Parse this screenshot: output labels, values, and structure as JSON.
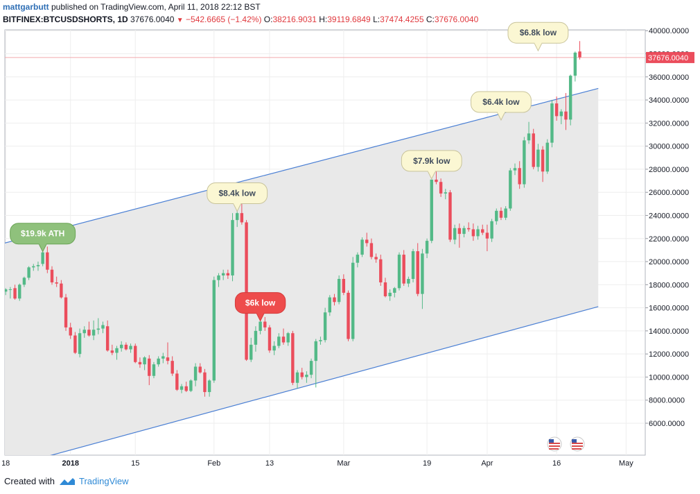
{
  "header": {
    "author": "mattgarbutt",
    "published_text": " published on TradingView.com, April 11, 2018 22:12 BST",
    "symbol": "BITFINEX:BTCUSDSHORTS, 1D",
    "last": "37676.0040",
    "change": "−542.6665 (−1.42%)",
    "ohlc": {
      "o_label": "O:",
      "o": "38216.9031",
      "h_label": "H:",
      "h": "39119.6849",
      "l_label": "L:",
      "l": "37474.4255",
      "c_label": "C:",
      "c": "37676.0040"
    }
  },
  "footer": {
    "created_with": "Created with",
    "brand": "TradingView"
  },
  "colors": {
    "up": "#53b987",
    "down": "#eb4d5c",
    "channel_line": "#4a7fd4",
    "channel_fill": "#e9e9e9",
    "price_line": "#f2a9ae",
    "grid": "#eeeeee"
  },
  "chart_data": {
    "type": "candlestick",
    "ylim": [
      5200,
      41600
    ],
    "y_ticks": [
      "40000.0000",
      "38000.0000",
      "36000.0000",
      "34000.0000",
      "32000.0000",
      "30000.0000",
      "28000.0000",
      "26000.0000",
      "24000.0000",
      "22000.0000",
      "20000.0000",
      "18000.0000",
      "16000.0000",
      "14000.0000",
      "12000.0000",
      "10000.0000",
      "8000.0000",
      "6000.0000"
    ],
    "x_labels": [
      {
        "label": "18",
        "day": 0
      },
      {
        "label": "2018",
        "day": 14
      },
      {
        "label": "15",
        "day": 28
      },
      {
        "label": "Feb",
        "day": 45
      },
      {
        "label": "13",
        "day": 57
      },
      {
        "label": "Mar",
        "day": 73
      },
      {
        "label": "19",
        "day": 91
      },
      {
        "label": "Apr",
        "day": 104
      },
      {
        "label": "16",
        "day": 119
      },
      {
        "label": "May",
        "day": 134
      }
    ],
    "last_price_label": "37676.0040",
    "last_price": 37676,
    "candles": [
      {
        "o": 17400,
        "h": 17700,
        "l": 17100,
        "c": 17600
      },
      {
        "o": 17600,
        "h": 17800,
        "l": 16800,
        "c": 17600
      },
      {
        "o": 17700,
        "h": 18000,
        "l": 16700,
        "c": 16800
      },
      {
        "o": 16800,
        "h": 18100,
        "l": 16600,
        "c": 18000
      },
      {
        "o": 18000,
        "h": 18700,
        "l": 17800,
        "c": 18600
      },
      {
        "o": 18600,
        "h": 19600,
        "l": 18400,
        "c": 19500
      },
      {
        "o": 19500,
        "h": 19800,
        "l": 19200,
        "c": 19600
      },
      {
        "o": 19600,
        "h": 20000,
        "l": 19200,
        "c": 19700
      },
      {
        "o": 19800,
        "h": 21100,
        "l": 19600,
        "c": 20800
      },
      {
        "o": 20800,
        "h": 21300,
        "l": 19000,
        "c": 19300
      },
      {
        "o": 19300,
        "h": 19600,
        "l": 18000,
        "c": 18200
      },
      {
        "o": 18200,
        "h": 18700,
        "l": 17800,
        "c": 18100
      },
      {
        "o": 18100,
        "h": 18400,
        "l": 16800,
        "c": 16900
      },
      {
        "o": 16900,
        "h": 17200,
        "l": 14000,
        "c": 14300
      },
      {
        "o": 14300,
        "h": 14700,
        "l": 13300,
        "c": 13600
      },
      {
        "o": 13600,
        "h": 13900,
        "l": 12000,
        "c": 12100
      },
      {
        "o": 12000,
        "h": 14200,
        "l": 11700,
        "c": 13800
      },
      {
        "o": 13800,
        "h": 14400,
        "l": 13400,
        "c": 14100
      },
      {
        "o": 14100,
        "h": 14800,
        "l": 13500,
        "c": 13600
      },
      {
        "o": 13600,
        "h": 14900,
        "l": 13200,
        "c": 14100
      },
      {
        "o": 14100,
        "h": 15100,
        "l": 13700,
        "c": 14200
      },
      {
        "o": 14200,
        "h": 14800,
        "l": 13800,
        "c": 14500
      },
      {
        "o": 14400,
        "h": 14900,
        "l": 12200,
        "c": 12300
      },
      {
        "o": 12300,
        "h": 12800,
        "l": 11900,
        "c": 12100
      },
      {
        "o": 12100,
        "h": 12700,
        "l": 11500,
        "c": 12500
      },
      {
        "o": 12500,
        "h": 13100,
        "l": 12200,
        "c": 12800
      },
      {
        "o": 12800,
        "h": 13000,
        "l": 12300,
        "c": 12400
      },
      {
        "o": 12400,
        "h": 12900,
        "l": 12100,
        "c": 12700
      },
      {
        "o": 12700,
        "h": 12900,
        "l": 11200,
        "c": 11300
      },
      {
        "o": 11300,
        "h": 11700,
        "l": 10800,
        "c": 11100
      },
      {
        "o": 11100,
        "h": 11800,
        "l": 10600,
        "c": 11700
      },
      {
        "o": 11600,
        "h": 11900,
        "l": 9300,
        "c": 10100
      },
      {
        "o": 10100,
        "h": 11300,
        "l": 9900,
        "c": 11100
      },
      {
        "o": 11100,
        "h": 11800,
        "l": 10900,
        "c": 11600
      },
      {
        "o": 11600,
        "h": 12100,
        "l": 11200,
        "c": 11800
      },
      {
        "o": 11700,
        "h": 13000,
        "l": 11100,
        "c": 11400
      },
      {
        "o": 11400,
        "h": 11800,
        "l": 10100,
        "c": 10300
      },
      {
        "o": 10300,
        "h": 10600,
        "l": 8800,
        "c": 8900
      },
      {
        "o": 8900,
        "h": 9400,
        "l": 8600,
        "c": 9200
      },
      {
        "o": 9200,
        "h": 9600,
        "l": 8700,
        "c": 8800
      },
      {
        "o": 8800,
        "h": 9800,
        "l": 8700,
        "c": 9700
      },
      {
        "o": 9700,
        "h": 11200,
        "l": 9200,
        "c": 10900
      },
      {
        "o": 10900,
        "h": 11200,
        "l": 10300,
        "c": 10400
      },
      {
        "o": 10400,
        "h": 10700,
        "l": 8300,
        "c": 8700
      },
      {
        "o": 8700,
        "h": 9800,
        "l": 8300,
        "c": 9700
      },
      {
        "o": 9700,
        "h": 18700,
        "l": 9500,
        "c": 18400
      },
      {
        "o": 18400,
        "h": 19000,
        "l": 17800,
        "c": 18800
      },
      {
        "o": 18800,
        "h": 19300,
        "l": 18400,
        "c": 19000
      },
      {
        "o": 19000,
        "h": 19300,
        "l": 18500,
        "c": 18800
      },
      {
        "o": 18800,
        "h": 24200,
        "l": 18300,
        "c": 23600
      },
      {
        "o": 23600,
        "h": 24600,
        "l": 23000,
        "c": 24200
      },
      {
        "o": 24200,
        "h": 25800,
        "l": 23200,
        "c": 23400
      },
      {
        "o": 23400,
        "h": 23600,
        "l": 11400,
        "c": 11500
      },
      {
        "o": 11500,
        "h": 13400,
        "l": 11300,
        "c": 12800
      },
      {
        "o": 12800,
        "h": 14400,
        "l": 12200,
        "c": 14000
      },
      {
        "o": 14000,
        "h": 15000,
        "l": 13700,
        "c": 14800
      },
      {
        "o": 14800,
        "h": 15200,
        "l": 14000,
        "c": 14300
      },
      {
        "o": 14300,
        "h": 14500,
        "l": 12100,
        "c": 12300
      },
      {
        "o": 12300,
        "h": 13100,
        "l": 11900,
        "c": 12700
      },
      {
        "o": 12700,
        "h": 13800,
        "l": 12500,
        "c": 13500
      },
      {
        "o": 13500,
        "h": 14200,
        "l": 12800,
        "c": 13000
      },
      {
        "o": 13000,
        "h": 13900,
        "l": 12700,
        "c": 13800
      },
      {
        "o": 13800,
        "h": 14000,
        "l": 9300,
        "c": 9500
      },
      {
        "o": 9500,
        "h": 10600,
        "l": 9000,
        "c": 10400
      },
      {
        "o": 10400,
        "h": 10800,
        "l": 9800,
        "c": 10000
      },
      {
        "o": 10000,
        "h": 10500,
        "l": 9500,
        "c": 10200
      },
      {
        "o": 10200,
        "h": 11600,
        "l": 9900,
        "c": 11400
      },
      {
        "o": 11400,
        "h": 13300,
        "l": 9100,
        "c": 13100
      },
      {
        "o": 13100,
        "h": 13500,
        "l": 12800,
        "c": 13200
      },
      {
        "o": 13200,
        "h": 16000,
        "l": 13000,
        "c": 15600
      },
      {
        "o": 15600,
        "h": 17100,
        "l": 15300,
        "c": 16900
      },
      {
        "o": 16900,
        "h": 17200,
        "l": 16200,
        "c": 16500
      },
      {
        "o": 16500,
        "h": 18800,
        "l": 16300,
        "c": 18500
      },
      {
        "o": 18500,
        "h": 18900,
        "l": 17100,
        "c": 17300
      },
      {
        "o": 17300,
        "h": 17500,
        "l": 13100,
        "c": 13300
      },
      {
        "o": 13300,
        "h": 20400,
        "l": 13100,
        "c": 19900
      },
      {
        "o": 19900,
        "h": 20800,
        "l": 19500,
        "c": 20600
      },
      {
        "o": 20600,
        "h": 22100,
        "l": 20400,
        "c": 21900
      },
      {
        "o": 21900,
        "h": 22500,
        "l": 21300,
        "c": 21600
      },
      {
        "o": 21600,
        "h": 22000,
        "l": 20200,
        "c": 20400
      },
      {
        "o": 20400,
        "h": 20700,
        "l": 19900,
        "c": 20200
      },
      {
        "o": 20200,
        "h": 20600,
        "l": 17900,
        "c": 18200
      },
      {
        "o": 18200,
        "h": 18600,
        "l": 16900,
        "c": 17000
      },
      {
        "o": 17000,
        "h": 17600,
        "l": 16600,
        "c": 17300
      },
      {
        "o": 17300,
        "h": 17800,
        "l": 16900,
        "c": 17700
      },
      {
        "o": 17700,
        "h": 20800,
        "l": 17500,
        "c": 20600
      },
      {
        "o": 20600,
        "h": 21000,
        "l": 17900,
        "c": 18100
      },
      {
        "o": 18100,
        "h": 18700,
        "l": 17800,
        "c": 18500
      },
      {
        "o": 18500,
        "h": 21100,
        "l": 18200,
        "c": 20900
      },
      {
        "o": 20900,
        "h": 21600,
        "l": 17000,
        "c": 17200
      },
      {
        "o": 17200,
        "h": 21100,
        "l": 15900,
        "c": 20700
      },
      {
        "o": 20700,
        "h": 22000,
        "l": 20300,
        "c": 21800
      },
      {
        "o": 21800,
        "h": 27100,
        "l": 21600,
        "c": 27100
      },
      {
        "o": 27100,
        "h": 28700,
        "l": 26700,
        "c": 26900
      },
      {
        "o": 26900,
        "h": 27200,
        "l": 25600,
        "c": 25900
      },
      {
        "o": 25900,
        "h": 26300,
        "l": 25400,
        "c": 26000
      },
      {
        "o": 26000,
        "h": 26200,
        "l": 21700,
        "c": 21900
      },
      {
        "o": 21900,
        "h": 23200,
        "l": 21500,
        "c": 22900
      },
      {
        "o": 22900,
        "h": 23300,
        "l": 21200,
        "c": 22400
      },
      {
        "o": 22400,
        "h": 23100,
        "l": 22100,
        "c": 22900
      },
      {
        "o": 22900,
        "h": 23400,
        "l": 22600,
        "c": 22800
      },
      {
        "o": 22800,
        "h": 23300,
        "l": 21800,
        "c": 22200
      },
      {
        "o": 22200,
        "h": 23100,
        "l": 21900,
        "c": 22800
      },
      {
        "o": 22800,
        "h": 23200,
        "l": 22300,
        "c": 22500
      },
      {
        "o": 22500,
        "h": 23200,
        "l": 20900,
        "c": 22000
      },
      {
        "o": 22000,
        "h": 23700,
        "l": 21700,
        "c": 23500
      },
      {
        "o": 23500,
        "h": 24600,
        "l": 23200,
        "c": 24400
      },
      {
        "o": 24400,
        "h": 24700,
        "l": 23600,
        "c": 23800
      },
      {
        "o": 23800,
        "h": 24800,
        "l": 23600,
        "c": 24600
      },
      {
        "o": 24600,
        "h": 28100,
        "l": 24400,
        "c": 27900
      },
      {
        "o": 27900,
        "h": 28500,
        "l": 27500,
        "c": 28100
      },
      {
        "o": 28100,
        "h": 28700,
        "l": 26300,
        "c": 26700
      },
      {
        "o": 26700,
        "h": 30800,
        "l": 26400,
        "c": 30500
      },
      {
        "o": 30500,
        "h": 32100,
        "l": 30200,
        "c": 31100
      },
      {
        "o": 31100,
        "h": 31500,
        "l": 28000,
        "c": 28200
      },
      {
        "o": 28200,
        "h": 30200,
        "l": 27800,
        "c": 29700
      },
      {
        "o": 29700,
        "h": 30000,
        "l": 26900,
        "c": 27800
      },
      {
        "o": 27800,
        "h": 30600,
        "l": 27600,
        "c": 30300
      },
      {
        "o": 30300,
        "h": 34000,
        "l": 29900,
        "c": 33700
      },
      {
        "o": 33700,
        "h": 34300,
        "l": 32200,
        "c": 32600
      },
      {
        "o": 32600,
        "h": 33200,
        "l": 31900,
        "c": 33000
      },
      {
        "o": 33000,
        "h": 34600,
        "l": 31400,
        "c": 32300
      },
      {
        "o": 32300,
        "h": 36200,
        "l": 31800,
        "c": 36100
      },
      {
        "o": 36100,
        "h": 38200,
        "l": 35600,
        "c": 38100
      },
      {
        "o": 38200,
        "h": 39100,
        "l": 37500,
        "c": 37700
      }
    ],
    "channel": {
      "upper": [
        [
          -6,
          21000
        ],
        [
          128,
          35000
        ]
      ],
      "lower": [
        [
          -6,
          1500
        ],
        [
          128,
          16100
        ]
      ]
    },
    "annotations": [
      {
        "label": "$19.9k ATH",
        "day": 8,
        "price": 20800,
        "style": "green"
      },
      {
        "label": "$8.4k low",
        "day": 50,
        "price": 24300,
        "style": "yellow"
      },
      {
        "label": "$6k low",
        "day": 55,
        "price": 14800,
        "style": "red"
      },
      {
        "label": "$7.9k low",
        "day": 92,
        "price": 27100,
        "style": "yellow"
      },
      {
        "label": "$6.4k low",
        "day": 107,
        "price": 32200,
        "style": "yellow"
      },
      {
        "label": "$6.8k low",
        "day": 115,
        "price": 38200,
        "style": "yellow"
      }
    ]
  }
}
